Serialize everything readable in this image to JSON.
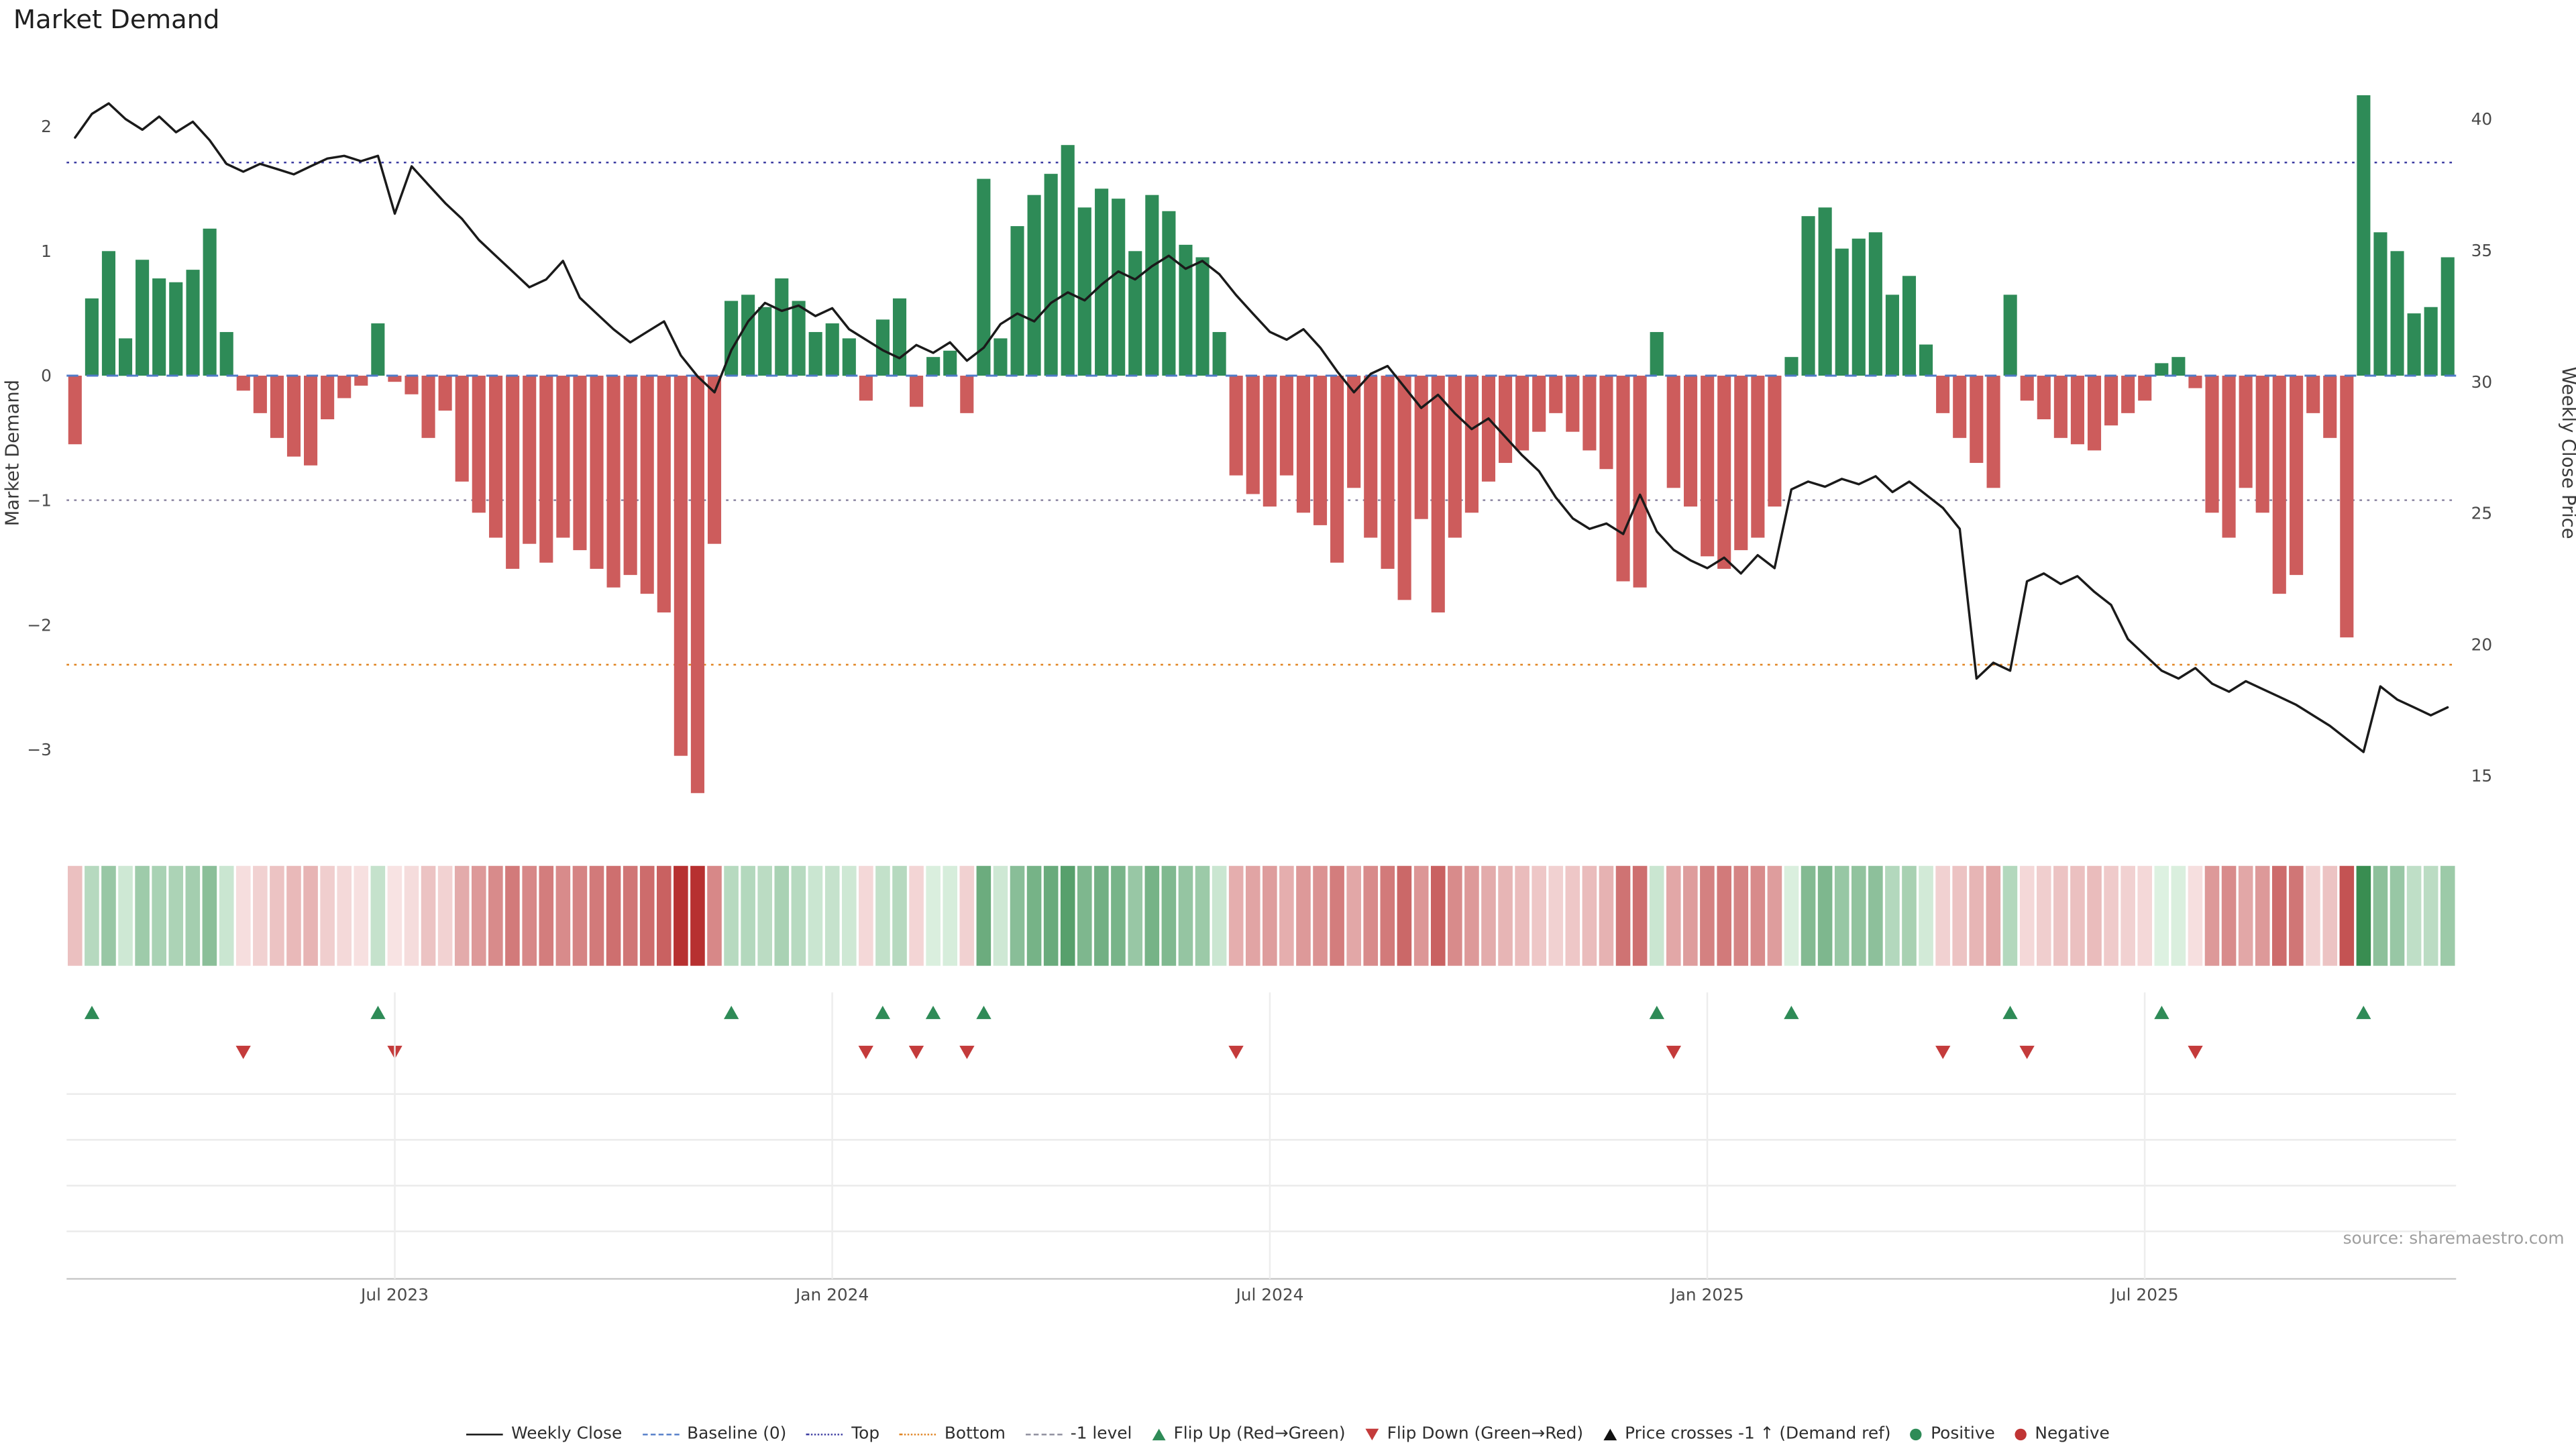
{
  "page": {
    "title": "Market Demand",
    "source": "source: sharemaestro.com"
  },
  "chart_data": {
    "type": "bar+line",
    "title": "Market Demand",
    "ylabel_left": "Market Demand",
    "ylabel_right": "Weekly Close Price",
    "n_weeks": 142,
    "left_ylim": [
      -3.8,
      2.48
    ],
    "right_ylim": [
      12.2,
      42
    ],
    "series": [
      {
        "name": "Market Demand",
        "type": "bar",
        "axis": "left",
        "values": [
          -0.55,
          0.62,
          1.0,
          0.3,
          0.93,
          0.78,
          0.75,
          0.85,
          1.18,
          0.35,
          -0.12,
          -0.3,
          -0.5,
          -0.65,
          -0.72,
          -0.35,
          -0.18,
          -0.08,
          0.42,
          -0.05,
          -0.15,
          -0.5,
          -0.28,
          -0.85,
          -1.1,
          -1.3,
          -1.55,
          -1.35,
          -1.5,
          -1.3,
          -1.4,
          -1.55,
          -1.7,
          -1.6,
          -1.75,
          -1.9,
          -3.05,
          -3.35,
          -1.35,
          0.6,
          0.65,
          0.55,
          0.78,
          0.6,
          0.35,
          0.42,
          0.3,
          -0.2,
          0.45,
          0.62,
          -0.25,
          0.15,
          0.2,
          -0.3,
          1.58,
          0.3,
          1.2,
          1.45,
          1.62,
          1.85,
          1.35,
          1.5,
          1.42,
          1.0,
          1.45,
          1.32,
          1.05,
          0.95,
          0.35,
          -0.8,
          -0.95,
          -1.05,
          -0.8,
          -1.1,
          -1.2,
          -1.5,
          -0.9,
          -1.3,
          -1.55,
          -1.8,
          -1.15,
          -1.9,
          -1.3,
          -1.1,
          -0.85,
          -0.7,
          -0.6,
          -0.45,
          -0.3,
          -0.45,
          -0.6,
          -0.75,
          -1.65,
          -1.7,
          0.35,
          -0.9,
          -1.05,
          -1.45,
          -1.55,
          -1.4,
          -1.3,
          -1.05,
          0.15,
          1.28,
          1.35,
          1.02,
          1.1,
          1.15,
          0.65,
          0.8,
          0.25,
          -0.3,
          -0.5,
          -0.7,
          -0.9,
          0.65,
          -0.2,
          -0.35,
          -0.5,
          -0.55,
          -0.6,
          -0.4,
          -0.3,
          -0.2,
          0.1,
          0.15,
          -0.1,
          -1.1,
          -1.3,
          -0.9,
          -1.1,
          -1.75,
          -1.6,
          -0.3,
          -0.5,
          -2.1,
          2.25,
          1.15,
          1.0,
          0.5,
          0.55,
          0.95
        ]
      },
      {
        "name": "Weekly Close",
        "type": "line",
        "axis": "right",
        "values": [
          39.3,
          40.2,
          40.6,
          40.0,
          39.6,
          40.1,
          39.5,
          39.9,
          39.2,
          38.3,
          38.0,
          38.3,
          38.1,
          37.9,
          38.2,
          38.5,
          38.6,
          38.4,
          38.6,
          36.4,
          38.2,
          37.5,
          36.8,
          36.2,
          35.4,
          34.8,
          34.2,
          33.6,
          33.9,
          34.6,
          33.2,
          32.6,
          32.0,
          31.5,
          31.9,
          32.3,
          31.0,
          30.2,
          29.6,
          31.2,
          32.3,
          33.0,
          32.7,
          32.9,
          32.5,
          32.8,
          32.0,
          31.6,
          31.2,
          30.9,
          31.4,
          31.1,
          31.5,
          30.8,
          31.3,
          32.2,
          32.6,
          32.3,
          33.0,
          33.4,
          33.1,
          33.7,
          34.2,
          33.9,
          34.4,
          34.8,
          34.3,
          34.6,
          34.1,
          33.3,
          32.6,
          31.9,
          31.6,
          32.0,
          31.3,
          30.4,
          29.6,
          30.3,
          30.6,
          29.8,
          29.0,
          29.5,
          28.8,
          28.2,
          28.6,
          27.9,
          27.2,
          26.6,
          25.6,
          24.8,
          24.4,
          24.6,
          24.2,
          25.7,
          24.3,
          23.6,
          23.2,
          22.9,
          23.3,
          22.7,
          23.4,
          22.9,
          25.9,
          26.2,
          26.0,
          26.3,
          26.1,
          26.4,
          25.8,
          26.2,
          25.7,
          25.2,
          24.4,
          18.7,
          19.3,
          19.0,
          22.4,
          22.7,
          22.3,
          22.6,
          22.0,
          21.5,
          20.2,
          19.6,
          19.0,
          18.7,
          19.1,
          18.5,
          18.2,
          18.6,
          18.3,
          18.0,
          17.7,
          17.3,
          16.9,
          16.4,
          15.9,
          18.4,
          17.9,
          17.6,
          17.3,
          17.6
        ]
      }
    ],
    "left_ticks": [
      {
        "v": 2,
        "label": "2"
      },
      {
        "v": 1,
        "label": "1"
      },
      {
        "v": 0,
        "label": "0"
      },
      {
        "v": -1,
        "label": "−1"
      },
      {
        "v": -2,
        "label": "−2"
      },
      {
        "v": -3,
        "label": "−3"
      }
    ],
    "right_ticks": [
      {
        "v": 40,
        "label": "40"
      },
      {
        "v": 35,
        "label": "35"
      },
      {
        "v": 30,
        "label": "30"
      },
      {
        "v": 25,
        "label": "25"
      },
      {
        "v": 20,
        "label": "20"
      },
      {
        "v": 15,
        "label": "15"
      }
    ],
    "x_ticks": [
      {
        "index": 19,
        "label": "Jul 2023"
      },
      {
        "index": 45,
        "label": "Jan 2024"
      },
      {
        "index": 71,
        "label": "Jul 2024"
      },
      {
        "index": 97,
        "label": "Jan 2025"
      },
      {
        "index": 123,
        "label": "Jul 2025"
      }
    ],
    "ref_lines": [
      {
        "key": "baseline",
        "name": "Baseline (0)",
        "value": 0,
        "color": "#4f7ac7",
        "dash": "7,5",
        "width": 1.2,
        "z": "over"
      },
      {
        "key": "top",
        "name": "Top",
        "value": 1.71,
        "color": "#3a3aa0",
        "dash": "1.5,3",
        "width": 1,
        "z": "under"
      },
      {
        "key": "minus1",
        "name": "-1 level",
        "value": -1,
        "color": "#8a84a0",
        "dash": "1.5,3",
        "width": 1,
        "z": "under"
      },
      {
        "key": "bottom",
        "name": "Bottom",
        "value": -2.32,
        "color": "#e0821e",
        "dash": "1.5,3",
        "width": 1,
        "z": "under"
      }
    ],
    "flip_up_indices": [
      1,
      18,
      39,
      48,
      51,
      54,
      94,
      102,
      115,
      124,
      136
    ],
    "flip_down_indices": [
      10,
      19,
      47,
      50,
      53,
      69,
      95,
      111,
      116,
      126
    ],
    "colors": {
      "positive_bar": "#2e8b57",
      "negative_bar": "#cd5c5c",
      "price_line": "#1a1a1a",
      "flip_up": "#2e8b57",
      "flip_down": "#c43b3b"
    }
  },
  "legend": {
    "items": [
      {
        "label": "Weekly Close",
        "swatch": "line-solid",
        "color": "#111111"
      },
      {
        "label": "Baseline (0)",
        "swatch": "line-dashed",
        "color": "#4f7ac7"
      },
      {
        "label": "Top",
        "swatch": "line-dotted",
        "color": "#3a3aa0"
      },
      {
        "label": "Bottom",
        "swatch": "line-dotted",
        "color": "#e0821e"
      },
      {
        "label": "-1 level",
        "swatch": "line-dashed",
        "color": "#8a8a9a"
      },
      {
        "label": "Flip Up (Red→Green)",
        "swatch": "triangle-up",
        "color": "#2e8b57"
      },
      {
        "label": "Flip Down (Green→Red)",
        "swatch": "triangle-down",
        "color": "#c43b3b"
      },
      {
        "label": "Price crosses -1 ↑ (Demand ref)",
        "swatch": "triangle-up",
        "color": "#111111"
      },
      {
        "label": "Positive",
        "swatch": "dot",
        "color": "#2e8b57"
      },
      {
        "label": "Negative",
        "swatch": "dot",
        "color": "#c03434"
      }
    ]
  }
}
